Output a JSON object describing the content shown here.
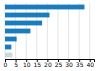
{
  "chart_data": {
    "type": "bar",
    "orientation": "horizontal",
    "categories": [
      null,
      null,
      null,
      null,
      null,
      null,
      null
    ],
    "values": [
      37.5,
      21.0,
      17.5,
      12.0,
      5.5,
      3.0,
      3.5
    ],
    "colors": [
      "#1a7bbf",
      "#1a7bbf",
      "#1a7bbf",
      "#1a7bbf",
      "#1a7bbf",
      "#1a7bbf",
      "#c8d8e0"
    ],
    "xlim": [
      0,
      42
    ],
    "xticks": [
      0,
      5,
      10,
      15,
      20,
      25,
      30,
      35,
      40
    ],
    "grid": true,
    "tick_labels": "x"
  }
}
